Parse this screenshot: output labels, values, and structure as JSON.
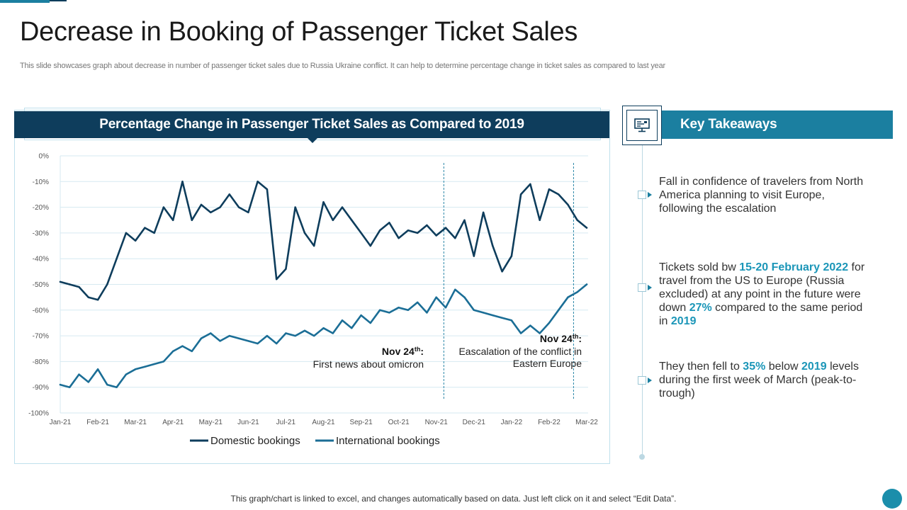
{
  "page": {
    "title": "Decrease in Booking of Passenger Ticket Sales",
    "subtitle": "This slide showcases graph about decrease in number of passenger ticket sales due to Russia Ukraine conflict. It can help to determine percentage change in ticket sales as compared to last year",
    "footnote": "This graph/chart is linked to excel, and changes automatically based on data. Just left click on it and select “Edit Data”."
  },
  "colors": {
    "navy": "#0e3d5c",
    "teal": "#1b7fa0",
    "domestic": "#0e3d5c",
    "international": "#1b6e96",
    "highlight": "#1b96b8"
  },
  "chart_data": {
    "type": "line",
    "title": "Percentage Change in Passenger Ticket Sales as Compared to 2019",
    "xlabel": "",
    "ylabel": "",
    "ylim": [
      -100,
      0
    ],
    "y_ticks": [
      "0%",
      "-10%",
      "-20%",
      "-30%",
      "-40%",
      "-50%",
      "-60%",
      "-70%",
      "-80%",
      "-90%",
      "-100%"
    ],
    "y_tick_values": [
      0,
      -10,
      -20,
      -30,
      -40,
      -50,
      -60,
      -70,
      -80,
      -90,
      -100
    ],
    "x_ticks": [
      "Jan-21",
      "Feb-21",
      "Mar-21",
      "Apr-21",
      "May-21",
      "Jun-21",
      "Jul-21",
      "Aug-21",
      "Sep-21",
      "Oct-21",
      "Nov-21",
      "Dec-21",
      "Jan-22",
      "Feb-22",
      "Mar-22"
    ],
    "x_range": [
      0,
      14
    ],
    "grid": true,
    "legend": "bottom",
    "series": [
      {
        "name": "Domestic bookings",
        "x": [
          0,
          0.25,
          0.5,
          0.75,
          1.0,
          1.25,
          1.5,
          1.75,
          2.0,
          2.25,
          2.5,
          2.75,
          3.0,
          3.25,
          3.5,
          3.75,
          4.0,
          4.25,
          4.5,
          4.75,
          5.0,
          5.25,
          5.5,
          5.75,
          6.0,
          6.25,
          6.5,
          6.75,
          7.0,
          7.25,
          7.5,
          7.75,
          8.0,
          8.25,
          8.5,
          8.75,
          9.0,
          9.25,
          9.5,
          9.75,
          10.0,
          10.25,
          10.5,
          10.75,
          11.0,
          11.25,
          11.5,
          11.75,
          12.0,
          12.25,
          12.5,
          12.75,
          13.0,
          13.25,
          13.5,
          13.75,
          14.0
        ],
        "values": [
          -49,
          -50,
          -51,
          -55,
          -56,
          -50,
          -40,
          -30,
          -33,
          -28,
          -30,
          -20,
          -25,
          -10,
          -25,
          -19,
          -22,
          -20,
          -15,
          -20,
          -22,
          -10,
          -13,
          -48,
          -44,
          -20,
          -30,
          -35,
          -18,
          -25,
          -20,
          -25,
          -30,
          -35,
          -29,
          -26,
          -32,
          -29,
          -30,
          -27,
          -31,
          -28,
          -32,
          -25,
          -39,
          -22,
          -35,
          -45,
          -39,
          -15,
          -11,
          -25,
          -13,
          -15,
          -19,
          -25,
          -28
        ]
      },
      {
        "name": "International bookings",
        "x": [
          0,
          0.25,
          0.5,
          0.75,
          1.0,
          1.25,
          1.5,
          1.75,
          2.0,
          2.25,
          2.5,
          2.75,
          3.0,
          3.25,
          3.5,
          3.75,
          4.0,
          4.25,
          4.5,
          4.75,
          5.0,
          5.25,
          5.5,
          5.75,
          6.0,
          6.25,
          6.5,
          6.75,
          7.0,
          7.25,
          7.5,
          7.75,
          8.0,
          8.25,
          8.5,
          8.75,
          9.0,
          9.25,
          9.5,
          9.75,
          10.0,
          10.25,
          10.5,
          10.75,
          11.0,
          11.25,
          11.5,
          11.75,
          12.0,
          12.25,
          12.5,
          12.75,
          13.0,
          13.25,
          13.5,
          13.75,
          14.0
        ],
        "values": [
          -89,
          -90,
          -85,
          -88,
          -83,
          -89,
          -90,
          -85,
          -83,
          -82,
          -81,
          -80,
          -76,
          -74,
          -76,
          -71,
          -69,
          -72,
          -70,
          -71,
          -72,
          -73,
          -70,
          -73,
          -69,
          -70,
          -68,
          -70,
          -67,
          -69,
          -64,
          -67,
          -62,
          -65,
          -60,
          -61,
          -59,
          -60,
          -57,
          -61,
          -55,
          -59,
          -52,
          -55,
          -60,
          -61,
          -62,
          -63,
          -64,
          -69,
          -66,
          -69,
          -65,
          -60,
          -55,
          -53,
          -50
        ]
      }
    ],
    "markers": [
      {
        "x": 10.2,
        "label": "Nov 24",
        "label_sup": "th",
        "label_suffix": ":",
        "text": "First news about omicron"
      },
      {
        "x": 13.65,
        "label": "Nov 24",
        "label_sup": "th",
        "label_suffix": ":",
        "text": [
          "Eascalation of the conflict in",
          "Eastern Europe"
        ]
      }
    ]
  },
  "key_takeaways": {
    "title": "Key Takeaways",
    "items": [
      {
        "plain": "Fall in confidence of travelers from North America planning to visit Europe, following the escalation"
      },
      {
        "t1": "Tickets sold bw ",
        "h1": "15-20 February 2022",
        "t2": " for travel from the US to Europe (Russia excluded) at any point in the future were down ",
        "h2": "27%",
        "t3": " compared to the same period in ",
        "h3": "2019"
      },
      {
        "t1": "They then fell to ",
        "h1": "35%",
        "t2": " below ",
        "h2": "2019",
        "t3": " levels during the first week of March (peak-to-trough)"
      }
    ]
  }
}
